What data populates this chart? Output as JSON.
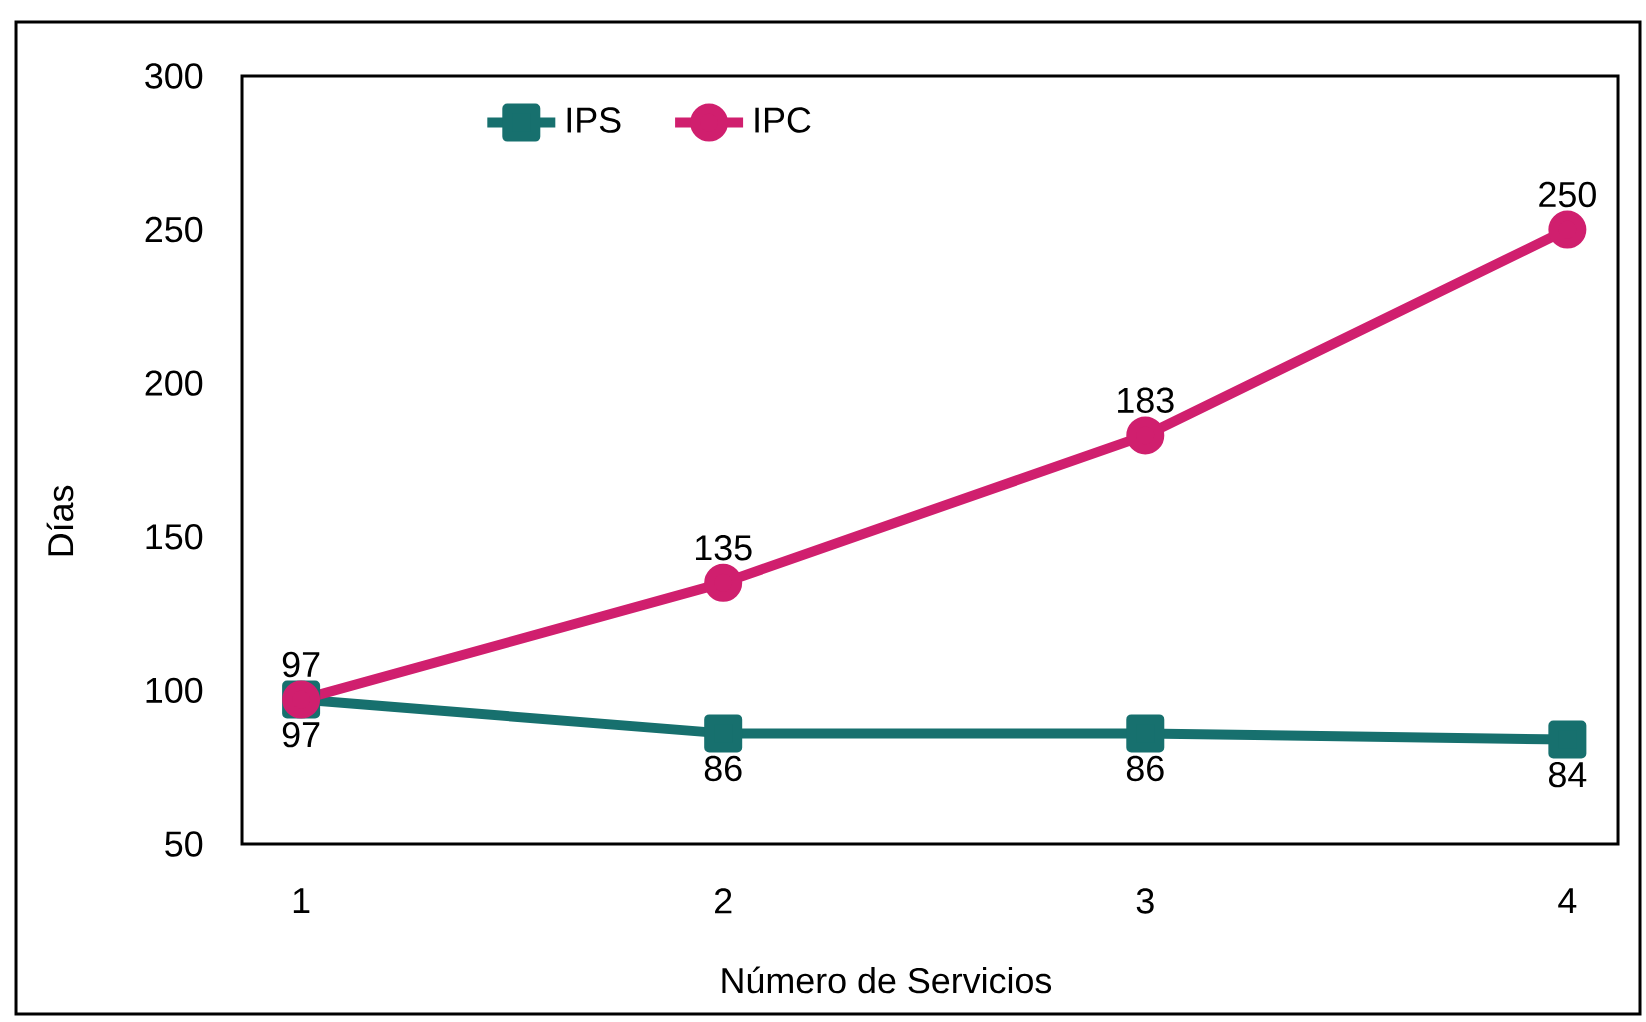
{
  "chart_data": {
    "type": "line",
    "xlabel": "Número de Servicios",
    "ylabel": "Días",
    "categories": [
      "1",
      "2",
      "3",
      "4"
    ],
    "ylim": [
      50,
      300
    ],
    "yticks": [
      50,
      100,
      150,
      200,
      250,
      300
    ],
    "legend": "top left",
    "data_labels": true,
    "series": [
      {
        "name": "IPS",
        "color": "#17706e",
        "marker": "square",
        "values": [
          97,
          86,
          86,
          84
        ]
      },
      {
        "name": "IPC",
        "color": "#d01f6e",
        "marker": "circle",
        "values": [
          97,
          135,
          183,
          250
        ]
      }
    ]
  }
}
